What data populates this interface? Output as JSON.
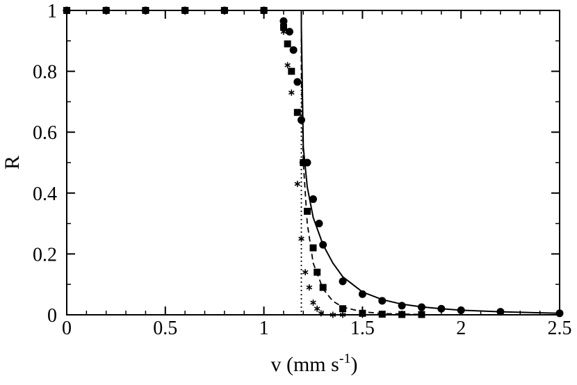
{
  "chart_data": {
    "type": "scatter",
    "title": "",
    "xlabel": {
      "main": "v (mm s",
      "sup": "-1",
      "close": ")"
    },
    "ylabel": "R",
    "xlim": [
      0,
      2.5
    ],
    "ylim": [
      0,
      1
    ],
    "xticks": [
      {
        "value": 0,
        "label": "0"
      },
      {
        "value": 0.5,
        "label": "0.5"
      },
      {
        "value": 1,
        "label": "1"
      },
      {
        "value": 1.5,
        "label": "1.5"
      },
      {
        "value": 2,
        "label": "2"
      },
      {
        "value": 2.5,
        "label": "2.5"
      }
    ],
    "yticks": [
      {
        "value": 0,
        "label": "0"
      },
      {
        "value": 0.2,
        "label": "0.2"
      },
      {
        "value": 0.4,
        "label": "0.4"
      },
      {
        "value": 0.6,
        "label": "0.6"
      },
      {
        "value": 0.8,
        "label": "0.8"
      },
      {
        "value": 1,
        "label": "1"
      }
    ],
    "x_minor_step": 0.1,
    "y_minor_step": 0.1,
    "grid": false,
    "legend": "none",
    "marker_series": [
      {
        "marker": "circle",
        "color": "#000000",
        "points": [
          [
            0,
            1
          ],
          [
            0.2,
            1
          ],
          [
            0.4,
            1
          ],
          [
            0.6,
            1
          ],
          [
            0.8,
            1
          ],
          [
            1.0,
            1
          ],
          [
            1.1,
            0.965
          ],
          [
            1.13,
            0.93
          ],
          [
            1.15,
            0.87
          ],
          [
            1.17,
            0.765
          ],
          [
            1.19,
            0.64
          ],
          [
            1.2,
            0.5
          ],
          [
            1.22,
            0.5
          ],
          [
            1.25,
            0.38
          ],
          [
            1.28,
            0.3
          ],
          [
            1.3,
            0.23
          ],
          [
            1.4,
            0.11
          ],
          [
            1.5,
            0.068
          ],
          [
            1.6,
            0.046
          ],
          [
            1.7,
            0.03
          ],
          [
            1.8,
            0.025
          ],
          [
            1.9,
            0.02
          ],
          [
            2.0,
            0.015
          ],
          [
            2.2,
            0.01
          ],
          [
            2.5,
            0.005
          ]
        ]
      },
      {
        "marker": "square",
        "color": "#000000",
        "points": [
          [
            0,
            1
          ],
          [
            0.2,
            1
          ],
          [
            0.4,
            1
          ],
          [
            0.6,
            1
          ],
          [
            0.8,
            1
          ],
          [
            1.0,
            1
          ],
          [
            1.1,
            0.945
          ],
          [
            1.12,
            0.89
          ],
          [
            1.14,
            0.8
          ],
          [
            1.17,
            0.665
          ],
          [
            1.2,
            0.5
          ],
          [
            1.22,
            0.34
          ],
          [
            1.25,
            0.22
          ],
          [
            1.27,
            0.14
          ],
          [
            1.3,
            0.09
          ],
          [
            1.4,
            0.02
          ],
          [
            1.5,
            0.005
          ],
          [
            1.6,
            0.002
          ],
          [
            1.7,
            0.001
          ],
          [
            1.8,
            0.001
          ]
        ]
      },
      {
        "marker": "asterisk",
        "color": "#000000",
        "points": [
          [
            1.1,
            0.93
          ],
          [
            1.12,
            0.82
          ],
          [
            1.14,
            0.73
          ],
          [
            1.17,
            0.43
          ],
          [
            1.19,
            0.25
          ],
          [
            1.21,
            0.14
          ],
          [
            1.23,
            0.09
          ],
          [
            1.25,
            0.04
          ],
          [
            1.27,
            0.02
          ],
          [
            1.29,
            0.005
          ],
          [
            1.35,
            0.0
          ],
          [
            1.4,
            0.0
          ],
          [
            1.5,
            0.0
          ]
        ]
      }
    ],
    "line_series": [
      {
        "style": "solid",
        "color": "#000000",
        "points": [
          [
            0,
            1
          ],
          [
            1.19,
            1
          ],
          [
            1.19,
            0.95
          ],
          [
            1.2,
            0.55
          ],
          [
            1.22,
            0.42
          ],
          [
            1.25,
            0.32
          ],
          [
            1.3,
            0.23
          ],
          [
            1.35,
            0.17
          ],
          [
            1.4,
            0.125
          ],
          [
            1.5,
            0.075
          ],
          [
            1.6,
            0.05
          ],
          [
            1.7,
            0.035
          ],
          [
            1.8,
            0.026
          ],
          [
            1.9,
            0.02
          ],
          [
            2.0,
            0.015
          ],
          [
            2.2,
            0.01
          ],
          [
            2.5,
            0.005
          ]
        ]
      },
      {
        "style": "dashed",
        "color": "#000000",
        "points": [
          [
            1.19,
            1
          ],
          [
            1.19,
            0.8
          ],
          [
            1.2,
            0.5
          ],
          [
            1.22,
            0.3
          ],
          [
            1.25,
            0.17
          ],
          [
            1.3,
            0.085
          ],
          [
            1.35,
            0.045
          ],
          [
            1.4,
            0.025
          ],
          [
            1.5,
            0.01
          ],
          [
            1.6,
            0.004
          ],
          [
            1.8,
            0.001
          ]
        ]
      },
      {
        "style": "dotted",
        "color": "#000000",
        "points": [
          [
            1.19,
            1
          ],
          [
            1.19,
            0
          ]
        ]
      }
    ]
  }
}
